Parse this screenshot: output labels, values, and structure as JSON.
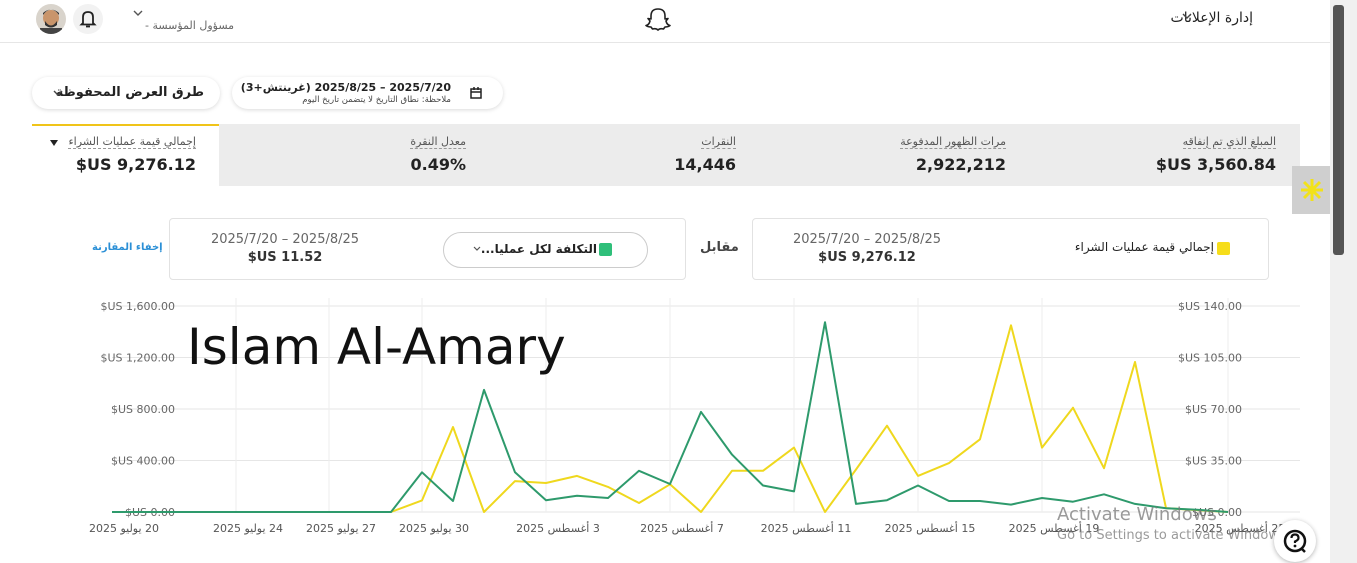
{
  "header": {
    "account": "مسؤول المؤسسة -",
    "menu": "إدارة الإعلانات"
  },
  "toolbar": {
    "saved_views": "طرق العرض المحفوظة",
    "date_range": "2025/7/20 – 2025/8/25 (غرينتش+3)",
    "date_note": "ملاحظة: نطاق التاريخ لا يتضمن تاريخ اليوم"
  },
  "metrics": [
    {
      "label": "المبلغ الذي تم إنفاقه",
      "value": "$US 3,560.84"
    },
    {
      "label": "مرات الظهور المدفوعة",
      "value": "2,922,212"
    },
    {
      "label": "النقرات",
      "value": "14,446"
    },
    {
      "label": "معدل النقرة",
      "value": "0.49%"
    },
    {
      "label": "إجمالي قيمة عمليات الشراء",
      "value": "$US 9,276.12"
    }
  ],
  "comparison": {
    "primary_range": "2025/7/20 – 2025/8/25",
    "primary_value": "$US 9,276.12",
    "versus": "مقابل",
    "secondary_range": "2025/7/20 – 2025/8/25",
    "secondary_value": "$US 11.52",
    "hide": "إخفاء المقارنة"
  },
  "chart_data": {
    "type": "line",
    "categories": [
      "20 يوليو 2025",
      null,
      null,
      null,
      "24 يوليو 2025",
      null,
      null,
      "27 يوليو 2025",
      null,
      null,
      "30 يوليو 2025",
      null,
      null,
      null,
      "3 أغسطس 2025",
      null,
      null,
      null,
      "7 أغسطس 2025",
      null,
      null,
      null,
      "11 أغسطس 2025",
      null,
      null,
      null,
      "15 أغسطس 2025",
      null,
      null,
      null,
      "19 أغسطس 2025",
      null,
      null,
      null,
      null,
      null,
      "25 أغسطس 2025"
    ],
    "series": [
      {
        "name": "إجمالي قيمة عمليات الشراء",
        "color": "#efd81e",
        "values": [
          0,
          0,
          0,
          0,
          0,
          0,
          0,
          0,
          0,
          0,
          90,
          660,
          0,
          240,
          225,
          280,
          195,
          70,
          215,
          0,
          320,
          320,
          500,
          0,
          330,
          670,
          280,
          380,
          565,
          1450,
          500,
          810,
          340,
          1165,
          30,
          15,
          0
        ]
      },
      {
        "name": "التكلفة لكل عمليا...",
        "color": "#2e9a6c",
        "axis": "y2",
        "values": [
          0,
          0,
          0,
          0,
          0,
          0,
          0,
          0,
          0,
          0,
          27,
          7.5,
          83,
          27,
          8,
          11,
          9.5,
          28,
          19,
          68,
          39,
          18,
          14,
          129,
          5.5,
          8,
          18,
          7.5,
          7.5,
          5,
          9.5,
          7,
          12,
          5.5,
          2.5,
          1.5,
          0
        ]
      }
    ],
    "ylim": [
      0,
      1600
    ],
    "yticks": [
      {
        "value": 0,
        "label": "$US 0.00"
      },
      {
        "value": 400,
        "label": "$US 400.00"
      },
      {
        "value": 800,
        "label": "$US 800.00"
      },
      {
        "value": 1200,
        "label": "$US 1,200.00"
      },
      {
        "value": 1600,
        "label": "$US 1,600.00"
      }
    ],
    "y2lim": [
      0,
      140
    ],
    "y2ticks": [
      {
        "value": 0,
        "label": "$US 0.00"
      },
      {
        "value": 35,
        "label": "$US 35.00"
      },
      {
        "value": 70,
        "label": "$US 70.00"
      },
      {
        "value": 105,
        "label": "$US 105.00"
      },
      {
        "value": 140,
        "label": "$US 140.00"
      }
    ],
    "grid": true
  },
  "watermark": "Islam Al-Amary",
  "os_notice": {
    "title": "Activate Windows",
    "text": "Go to Settings to activate Windows"
  }
}
